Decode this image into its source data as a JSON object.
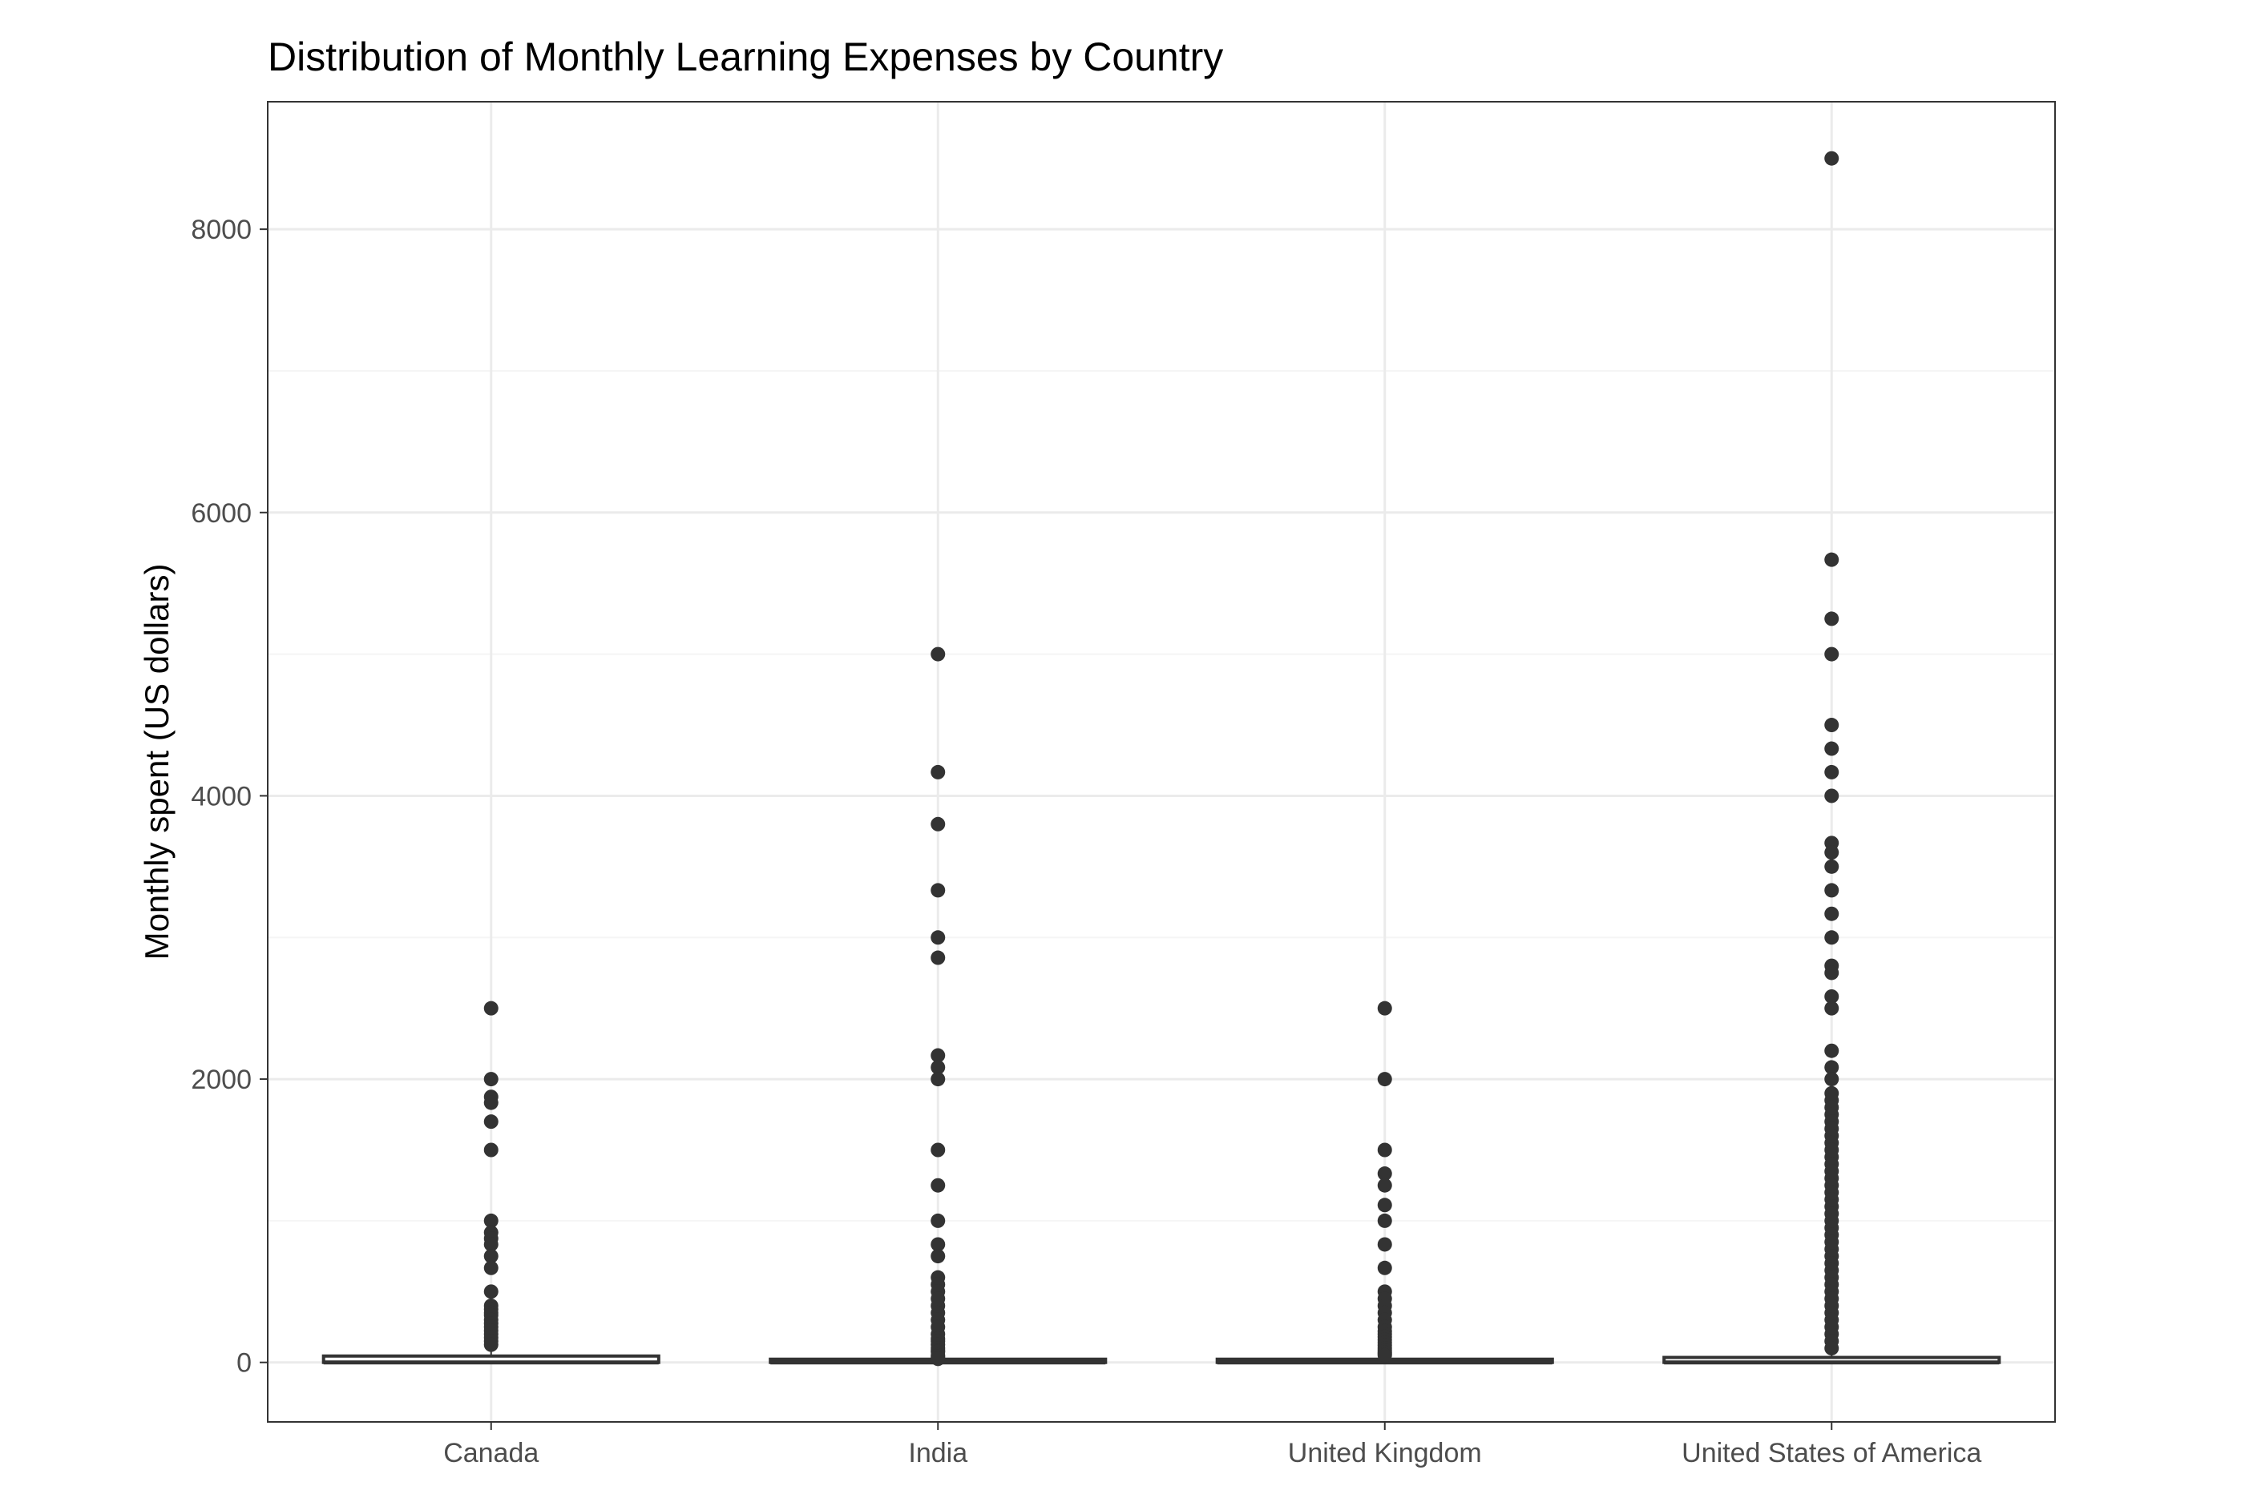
{
  "chart_data": {
    "type": "boxplot",
    "title": "Distribution of Monthly Learning Expenses by Country",
    "xlabel": "",
    "ylabel": "Monthly spent (US dollars)",
    "ylim": [
      -420,
      8900
    ],
    "y_ticks": [
      0,
      2000,
      4000,
      6000,
      8000
    ],
    "grid": true,
    "categories": [
      "Canada",
      "India",
      "United Kingdom",
      "United States of America"
    ],
    "boxes": [
      {
        "category": "Canada",
        "min": 0,
        "q1": 0,
        "median": 0,
        "q3": 45,
        "max": 100,
        "outliers": [
          2500,
          2000,
          1875,
          1833,
          1700,
          1500,
          1000,
          917,
          875,
          833,
          750,
          667,
          500,
          400,
          375,
          350,
          333,
          300,
          275,
          250,
          225,
          200,
          175,
          150,
          125
        ]
      },
      {
        "category": "India",
        "min": 0,
        "q1": 0,
        "median": 0,
        "q3": 8,
        "max": 20,
        "outliers": [
          5000,
          4167,
          3800,
          3333,
          3000,
          2857,
          2167,
          2083,
          2000,
          1500,
          1250,
          1000,
          833,
          750,
          600,
          550,
          500,
          450,
          400,
          350,
          300,
          250,
          200,
          167,
          150,
          125,
          100,
          83,
          75,
          50,
          40,
          30,
          25
        ]
      },
      {
        "category": "United Kingdom",
        "min": 0,
        "q1": 0,
        "median": 0,
        "q3": 15,
        "max": 40,
        "outliers": [
          2500,
          2000,
          1500,
          1333,
          1250,
          1111,
          1000,
          833,
          667,
          500,
          450,
          400,
          350,
          300,
          250,
          220,
          200,
          180,
          160,
          140,
          120,
          100,
          83,
          70,
          60,
          50
        ]
      },
      {
        "category": "United States of America",
        "min": 0,
        "q1": 0,
        "median": 0,
        "q3": 35,
        "max": 85,
        "outliers": [
          8500,
          5667,
          5250,
          5000,
          4500,
          4333,
          4167,
          4000,
          3667,
          3600,
          3500,
          3333,
          3167,
          3000,
          2800,
          2750,
          2583,
          2500,
          2200,
          2083,
          2000,
          1900,
          1850,
          1800,
          1750,
          1700,
          1650,
          1600,
          1550,
          1500,
          1450,
          1400,
          1350,
          1300,
          1250,
          1200,
          1150,
          1100,
          1050,
          1000,
          950,
          900,
          850,
          800,
          750,
          700,
          650,
          600,
          550,
          500,
          450,
          400,
          350,
          300,
          250,
          200,
          150,
          100
        ]
      }
    ]
  },
  "colors": {
    "box_fill": "#ffffff",
    "box_stroke": "#333333",
    "point": "#333333",
    "panel_border": "#333333",
    "grid_major": "#ebebeb",
    "grid_minor": "#f5f5f5",
    "tick_text": "#4d4d4d",
    "title_text": "#000000"
  }
}
